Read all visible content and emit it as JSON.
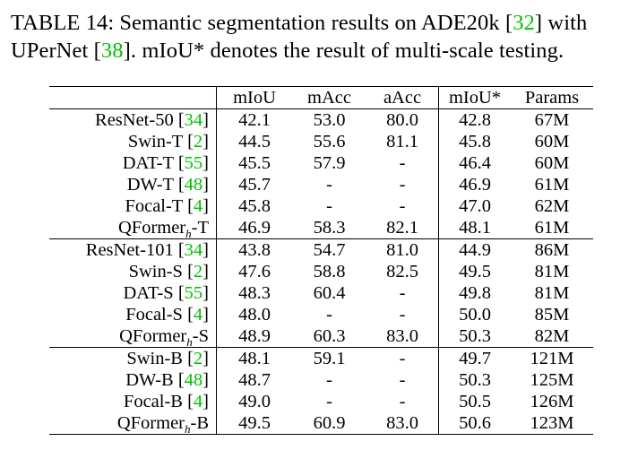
{
  "caption": {
    "label": "TABLE 14:",
    "text_before_ref1": "Semantic segmentation results on ADE20k [",
    "ref1": "32",
    "text_mid": "] with UPerNet [",
    "ref2": "38",
    "text_after": "]. mIoU* denotes the result of multi-scale testing."
  },
  "table": {
    "headers": [
      "",
      "mIoU",
      "mAcc",
      "aAcc",
      "mIoU*",
      "Params"
    ],
    "groups": [
      {
        "rows": [
          {
            "name": "ResNet-50",
            "ref": "34",
            "suffix": "",
            "values": [
              "42.1",
              "53.0",
              "80.0",
              "42.8",
              "67M"
            ]
          },
          {
            "name": "Swin-T",
            "ref": "2",
            "suffix": "",
            "values": [
              "44.5",
              "55.6",
              "81.1",
              "45.8",
              "60M"
            ]
          },
          {
            "name": "DAT-T",
            "ref": "55",
            "suffix": "",
            "values": [
              "45.5",
              "57.9",
              "-",
              "46.4",
              "60M"
            ]
          },
          {
            "name": "DW-T",
            "ref": "48",
            "suffix": "",
            "values": [
              "45.7",
              "-",
              "-",
              "46.9",
              "61M"
            ]
          },
          {
            "name": "Focal-T",
            "ref": "4",
            "suffix": "",
            "values": [
              "45.8",
              "-",
              "-",
              "47.0",
              "62M"
            ]
          },
          {
            "name": "QFormer",
            "ref": "",
            "sub": "h",
            "suffix": "-T",
            "values": [
              "46.9",
              "58.3",
              "82.1",
              "48.1",
              "61M"
            ]
          }
        ]
      },
      {
        "rows": [
          {
            "name": "ResNet-101",
            "ref": "34",
            "suffix": "",
            "values": [
              "43.8",
              "54.7",
              "81.0",
              "44.9",
              "86M"
            ]
          },
          {
            "name": "Swin-S",
            "ref": "2",
            "suffix": "",
            "values": [
              "47.6",
              "58.8",
              "82.5",
              "49.5",
              "81M"
            ]
          },
          {
            "name": "DAT-S",
            "ref": "55",
            "suffix": "",
            "values": [
              "48.3",
              "60.4",
              "-",
              "49.8",
              "81M"
            ]
          },
          {
            "name": "Focal-S",
            "ref": "4",
            "suffix": "",
            "values": [
              "48.0",
              "-",
              "-",
              "50.0",
              "85M"
            ]
          },
          {
            "name": "QFormer",
            "ref": "",
            "sub": "h",
            "suffix": "-S",
            "values": [
              "48.9",
              "60.3",
              "83.0",
              "50.3",
              "82M"
            ]
          }
        ]
      },
      {
        "rows": [
          {
            "name": "Swin-B",
            "ref": "2",
            "suffix": "",
            "values": [
              "48.1",
              "59.1",
              "-",
              "49.7",
              "121M"
            ]
          },
          {
            "name": "DW-B",
            "ref": "48",
            "suffix": "",
            "values": [
              "48.7",
              "-",
              "-",
              "50.3",
              "125M"
            ]
          },
          {
            "name": "Focal-B",
            "ref": "4",
            "suffix": "",
            "values": [
              "49.0",
              "-",
              "-",
              "50.5",
              "126M"
            ]
          },
          {
            "name": "QFormer",
            "ref": "",
            "sub": "h",
            "suffix": "-B",
            "values": [
              "49.5",
              "60.9",
              "83.0",
              "50.6",
              "123M"
            ]
          }
        ]
      }
    ]
  },
  "colors": {
    "reference_link": "#00c000",
    "text": "#000000"
  }
}
